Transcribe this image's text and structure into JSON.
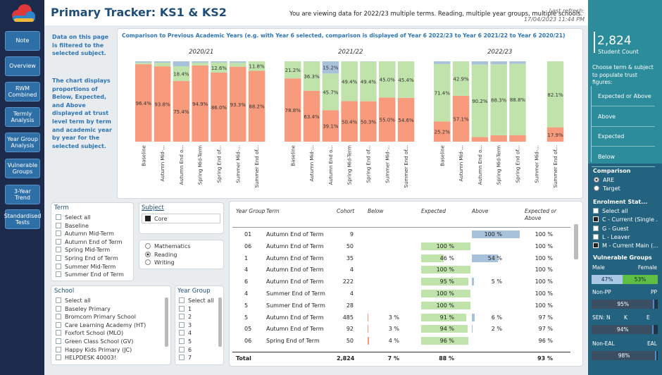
{
  "header": {
    "title": "Primary Tracker: KS1 & KS2",
    "info": "You are viewing data for 2022/23 multiple terms. Reading, multiple year groups, multiple schools.",
    "refresh_label": "Last refresh:",
    "refresh_time": "17/04/2023 11:44 PM"
  },
  "nav": [
    "Note",
    "Overview",
    "RWM Combined",
    "Termly Analysis",
    "Year Group Analysis",
    "Vulnerable Groups",
    "3-Year Trend",
    "Standardised Tests"
  ],
  "notes": [
    "Data on this page is filtered to the selected subject.",
    "The chart displays proportions of Below, Expected, and Above displayed at trust level term by term and academic year by year for the selected subject."
  ],
  "comparison_chart": {
    "title": "Comparison to Previous Academic Years (e.g. with Year 6 selected, comparison is displayed of Year 6 2022/23 to Year 6 2021/22 to Year 6 2020/21)",
    "categories": [
      "Baseline",
      "Autumn Mid-...",
      "Autumn End o...",
      "Spring Mid-Term",
      "Spring End of...",
      "Summer Mid-...",
      "Summer End of..."
    ],
    "colors": {
      "below": "#f79b7c",
      "expected": "#bfe3ab",
      "above": "#a9c2dc"
    },
    "panels": [
      {
        "name": "2020/21",
        "below": [
          96.4,
          93.8,
          75.4,
          94.9,
          86.0,
          93.3,
          88.2
        ],
        "below_labels": [
          "96.4%",
          "93.8%",
          "75.4%",
          "94.9%",
          "86.0%",
          "93.3%",
          "88.2%"
        ],
        "expected": [
          2.0,
          4.5,
          18.4,
          3.5,
          12.6,
          5.0,
          11.8
        ],
        "expected_labels": [
          null,
          null,
          "18.4%",
          null,
          "12.6%",
          null,
          "11.8%"
        ],
        "above": [
          1.6,
          1.7,
          6.2,
          1.6,
          1.4,
          1.7,
          0
        ],
        "above_labels": [
          null,
          null,
          null,
          null,
          null,
          null,
          null
        ]
      },
      {
        "name": "2021/22",
        "below": [
          78.8,
          63.4,
          39.1,
          50.4,
          50.3,
          55.0,
          54.6
        ],
        "below_labels": [
          "78.8%",
          "63.4%",
          "39.1%",
          "50.4%",
          "50.3%",
          "55.0%",
          "54.6%"
        ],
        "expected": [
          21.2,
          36.3,
          45.7,
          49.4,
          49.4,
          45.0,
          45.4
        ],
        "expected_labels": [
          "21.2%",
          "36.3%",
          "45.7%",
          "49.4%",
          "49.4%",
          "45.0%",
          "45.4%"
        ],
        "above": [
          0,
          0.3,
          15.2,
          0.2,
          0.3,
          0,
          0
        ],
        "above_labels": [
          null,
          null,
          "15.2%",
          null,
          null,
          null,
          null
        ]
      },
      {
        "name": "2022/23",
        "below": [
          25.2,
          57.1,
          5.8,
          8.0,
          8.2,
          null,
          17.9
        ],
        "below_labels": [
          "25.2%",
          "57.1%",
          null,
          null,
          null,
          null,
          "17.9%"
        ],
        "expected": [
          71.4,
          42.9,
          90.2,
          88.3,
          88.8,
          null,
          82.1
        ],
        "expected_labels": [
          "71.4%",
          "42.9%",
          "90.2%",
          "88.3%",
          "88.8%",
          null,
          "82.1%"
        ],
        "above": [
          3.4,
          0,
          4.0,
          3.7,
          3.0,
          null,
          0
        ],
        "above_labels": [
          null,
          null,
          null,
          null,
          null,
          null,
          null
        ]
      }
    ]
  },
  "term_slicer": {
    "title": "Term",
    "items": [
      "Select all",
      "Baseline",
      "Autumn Mid-Term",
      "Autumn End of Term",
      "Spring Mid-Term",
      "Spring End of Term",
      "Summer Mid-Term",
      "Summer End of Term"
    ]
  },
  "subject_slicer": {
    "title": "Subject",
    "selected": "Core",
    "options": [
      "Mathematics",
      "Reading",
      "Writing"
    ],
    "checked": "Reading"
  },
  "school_slicer": {
    "title": "School",
    "items": [
      "Select all",
      "Baseley Primary",
      "Bromcom Primary School",
      "Care Learning Academy (HT)",
      "Foxfort School (MLO)",
      "Green Class School (GV)",
      "Happy Kids Primary (JC)",
      "HELPDESK 40003!"
    ]
  },
  "year_slicer": {
    "title": "Year Group",
    "items": [
      "Select all",
      "1",
      "2",
      "3",
      "4",
      "5",
      "6",
      "7"
    ]
  },
  "table": {
    "headers": [
      "Year Group",
      "Term",
      "Cohort",
      "Below",
      "Expected",
      "Above",
      "Expected or Above"
    ],
    "rows": [
      [
        "01",
        "Autumn End of Term",
        "9",
        null,
        null,
        "100 %",
        "100 %"
      ],
      [
        "06",
        "Autumn End of Term",
        "50",
        null,
        "100 %",
        null,
        "100 %"
      ],
      [
        "1",
        "Autumn End of Term",
        "35",
        null,
        "46 %",
        "54 %",
        "100 %"
      ],
      [
        "4",
        "Autumn End of Term",
        "4",
        null,
        "100 %",
        null,
        "100 %"
      ],
      [
        "6",
        "Autumn End of Term",
        "222",
        null,
        "95 %",
        "5 %",
        "100 %"
      ],
      [
        "4",
        "Summer End of Term",
        "4",
        null,
        "100 %",
        null,
        "100 %"
      ],
      [
        "5",
        "Summer End of Term",
        "28",
        null,
        "100 %",
        null,
        "100 %"
      ],
      [
        "5",
        "Autumn End of Term",
        "485",
        "3 %",
        "91 %",
        "6 %",
        "97 %"
      ],
      [
        "05",
        "Autumn End of Term",
        "92",
        "3 %",
        "94 %",
        "2 %",
        "97 %"
      ],
      [
        "06",
        "Spring End of Term",
        "50",
        "4 %",
        "96 %",
        null,
        "96 %"
      ]
    ],
    "total": [
      "Total",
      null,
      "2,824",
      "7 %",
      "88 %",
      null,
      "93 %"
    ]
  },
  "side_panel": {
    "count": "2,824",
    "count_label": "Student Count",
    "prompt": "Choose term & subject to populate trust figures:",
    "buttons": [
      "Expected or Above",
      "Above",
      "Expected",
      "Below"
    ],
    "comparison": {
      "title": "Comparison",
      "options": [
        "ARE",
        "Target"
      ],
      "checked": "ARE"
    },
    "enrolment": {
      "title": "Enrolment Stat...",
      "items": [
        "Select all",
        "C - Current (Single ...",
        "G - Guest",
        "L - Leaver",
        "M - Current Main (..."
      ],
      "checked": [
        "C - Current (Single ...",
        "M - Current Main (..."
      ]
    },
    "vulnerable": {
      "title": "Vulnerable Groups",
      "groups": [
        {
          "labels": [
            "Male",
            "Female"
          ],
          "values": [
            "47%",
            "53%"
          ]
        },
        {
          "labels": [
            "Non-PP",
            "PP"
          ],
          "values": [
            "95%"
          ]
        },
        {
          "labels": [
            "SEN: N",
            "K",
            "E"
          ],
          "values": [
            "94%"
          ]
        },
        {
          "labels": [
            "Non-EAL",
            "EAL"
          ],
          "values": [
            "98%"
          ]
        }
      ]
    }
  }
}
